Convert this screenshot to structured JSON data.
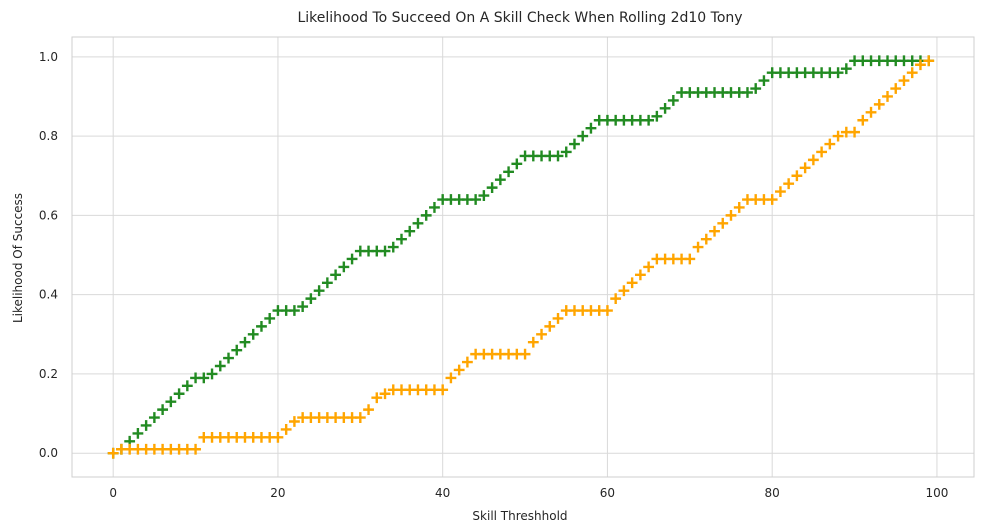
{
  "chart_data": {
    "type": "scatter",
    "title": "Likelihood To Succeed On A Skill Check When Rolling 2d10 Tony",
    "xlabel": "Skill Threshhold",
    "ylabel": "Likelihood Of Success",
    "xlim": [
      -5,
      104.5
    ],
    "ylim": [
      -0.06,
      1.05
    ],
    "xticks": [
      0,
      20,
      40,
      60,
      80,
      100
    ],
    "yticks": [
      0.0,
      0.2,
      0.4,
      0.6,
      0.8,
      1.0
    ],
    "xtick_labels": [
      "0",
      "20",
      "40",
      "60",
      "80",
      "100"
    ],
    "ytick_labels": [
      "0.0",
      "0.2",
      "0.4",
      "0.6",
      "0.8",
      "1.0"
    ],
    "grid": true,
    "legend": "none",
    "marker": "plus",
    "series": [
      {
        "color": "#228B22",
        "x": [
          0,
          1,
          2,
          3,
          4,
          5,
          6,
          7,
          8,
          9,
          10,
          11,
          12,
          13,
          14,
          15,
          16,
          17,
          18,
          19,
          20,
          21,
          22,
          23,
          24,
          25,
          26,
          27,
          28,
          29,
          30,
          31,
          32,
          33,
          34,
          35,
          36,
          37,
          38,
          39,
          40,
          41,
          42,
          43,
          44,
          45,
          46,
          47,
          48,
          49,
          50,
          51,
          52,
          53,
          54,
          55,
          56,
          57,
          58,
          59,
          60,
          61,
          62,
          63,
          64,
          65,
          66,
          67,
          68,
          69,
          70,
          71,
          72,
          73,
          74,
          75,
          76,
          77,
          78,
          79,
          80,
          81,
          82,
          83,
          84,
          85,
          86,
          87,
          88,
          89,
          90,
          91,
          92,
          93,
          94,
          95,
          96,
          97,
          98,
          99
        ],
        "values": [
          0.0,
          0.01,
          0.03,
          0.05,
          0.07,
          0.09,
          0.11,
          0.13,
          0.15,
          0.17,
          0.19,
          0.19,
          0.2,
          0.22,
          0.24,
          0.26,
          0.28,
          0.3,
          0.32,
          0.34,
          0.36,
          0.36,
          0.36,
          0.37,
          0.39,
          0.41,
          0.43,
          0.45,
          0.47,
          0.49,
          0.51,
          0.51,
          0.51,
          0.51,
          0.52,
          0.54,
          0.56,
          0.58,
          0.6,
          0.62,
          0.64,
          0.64,
          0.64,
          0.64,
          0.64,
          0.65,
          0.67,
          0.69,
          0.71,
          0.73,
          0.75,
          0.75,
          0.75,
          0.75,
          0.75,
          0.76,
          0.78,
          0.8,
          0.82,
          0.84,
          0.84,
          0.84,
          0.84,
          0.84,
          0.84,
          0.84,
          0.85,
          0.87,
          0.89,
          0.91,
          0.91,
          0.91,
          0.91,
          0.91,
          0.91,
          0.91,
          0.91,
          0.91,
          0.92,
          0.94,
          0.96,
          0.96,
          0.96,
          0.96,
          0.96,
          0.96,
          0.96,
          0.96,
          0.96,
          0.97,
          0.99,
          0.99,
          0.99,
          0.99,
          0.99,
          0.99,
          0.99,
          0.99,
          0.99,
          0.99
        ]
      },
      {
        "color": "#FFA500",
        "x": [
          0,
          1,
          2,
          3,
          4,
          5,
          6,
          7,
          8,
          9,
          10,
          11,
          12,
          13,
          14,
          15,
          16,
          17,
          18,
          19,
          20,
          21,
          22,
          23,
          24,
          25,
          26,
          27,
          28,
          29,
          30,
          31,
          32,
          33,
          34,
          35,
          36,
          37,
          38,
          39,
          40,
          41,
          42,
          43,
          44,
          45,
          46,
          47,
          48,
          49,
          50,
          51,
          52,
          53,
          54,
          55,
          56,
          57,
          58,
          59,
          60,
          61,
          62,
          63,
          64,
          65,
          66,
          67,
          68,
          69,
          70,
          71,
          72,
          73,
          74,
          75,
          76,
          77,
          78,
          79,
          80,
          81,
          82,
          83,
          84,
          85,
          86,
          87,
          88,
          89,
          90,
          91,
          92,
          93,
          94,
          95,
          96,
          97,
          98,
          99
        ],
        "values": [
          0.0,
          0.01,
          0.01,
          0.01,
          0.01,
          0.01,
          0.01,
          0.01,
          0.01,
          0.01,
          0.01,
          0.04,
          0.04,
          0.04,
          0.04,
          0.04,
          0.04,
          0.04,
          0.04,
          0.04,
          0.04,
          0.06,
          0.08,
          0.09,
          0.09,
          0.09,
          0.09,
          0.09,
          0.09,
          0.09,
          0.09,
          0.11,
          0.14,
          0.15,
          0.16,
          0.16,
          0.16,
          0.16,
          0.16,
          0.16,
          0.16,
          0.19,
          0.21,
          0.23,
          0.25,
          0.25,
          0.25,
          0.25,
          0.25,
          0.25,
          0.25,
          0.28,
          0.3,
          0.32,
          0.34,
          0.36,
          0.36,
          0.36,
          0.36,
          0.36,
          0.36,
          0.39,
          0.41,
          0.43,
          0.45,
          0.47,
          0.49,
          0.49,
          0.49,
          0.49,
          0.49,
          0.52,
          0.54,
          0.56,
          0.58,
          0.6,
          0.62,
          0.64,
          0.64,
          0.64,
          0.64,
          0.66,
          0.68,
          0.7,
          0.72,
          0.74,
          0.76,
          0.78,
          0.8,
          0.81,
          0.81,
          0.84,
          0.86,
          0.88,
          0.9,
          0.92,
          0.94,
          0.96,
          0.98,
          0.99
        ]
      }
    ]
  }
}
